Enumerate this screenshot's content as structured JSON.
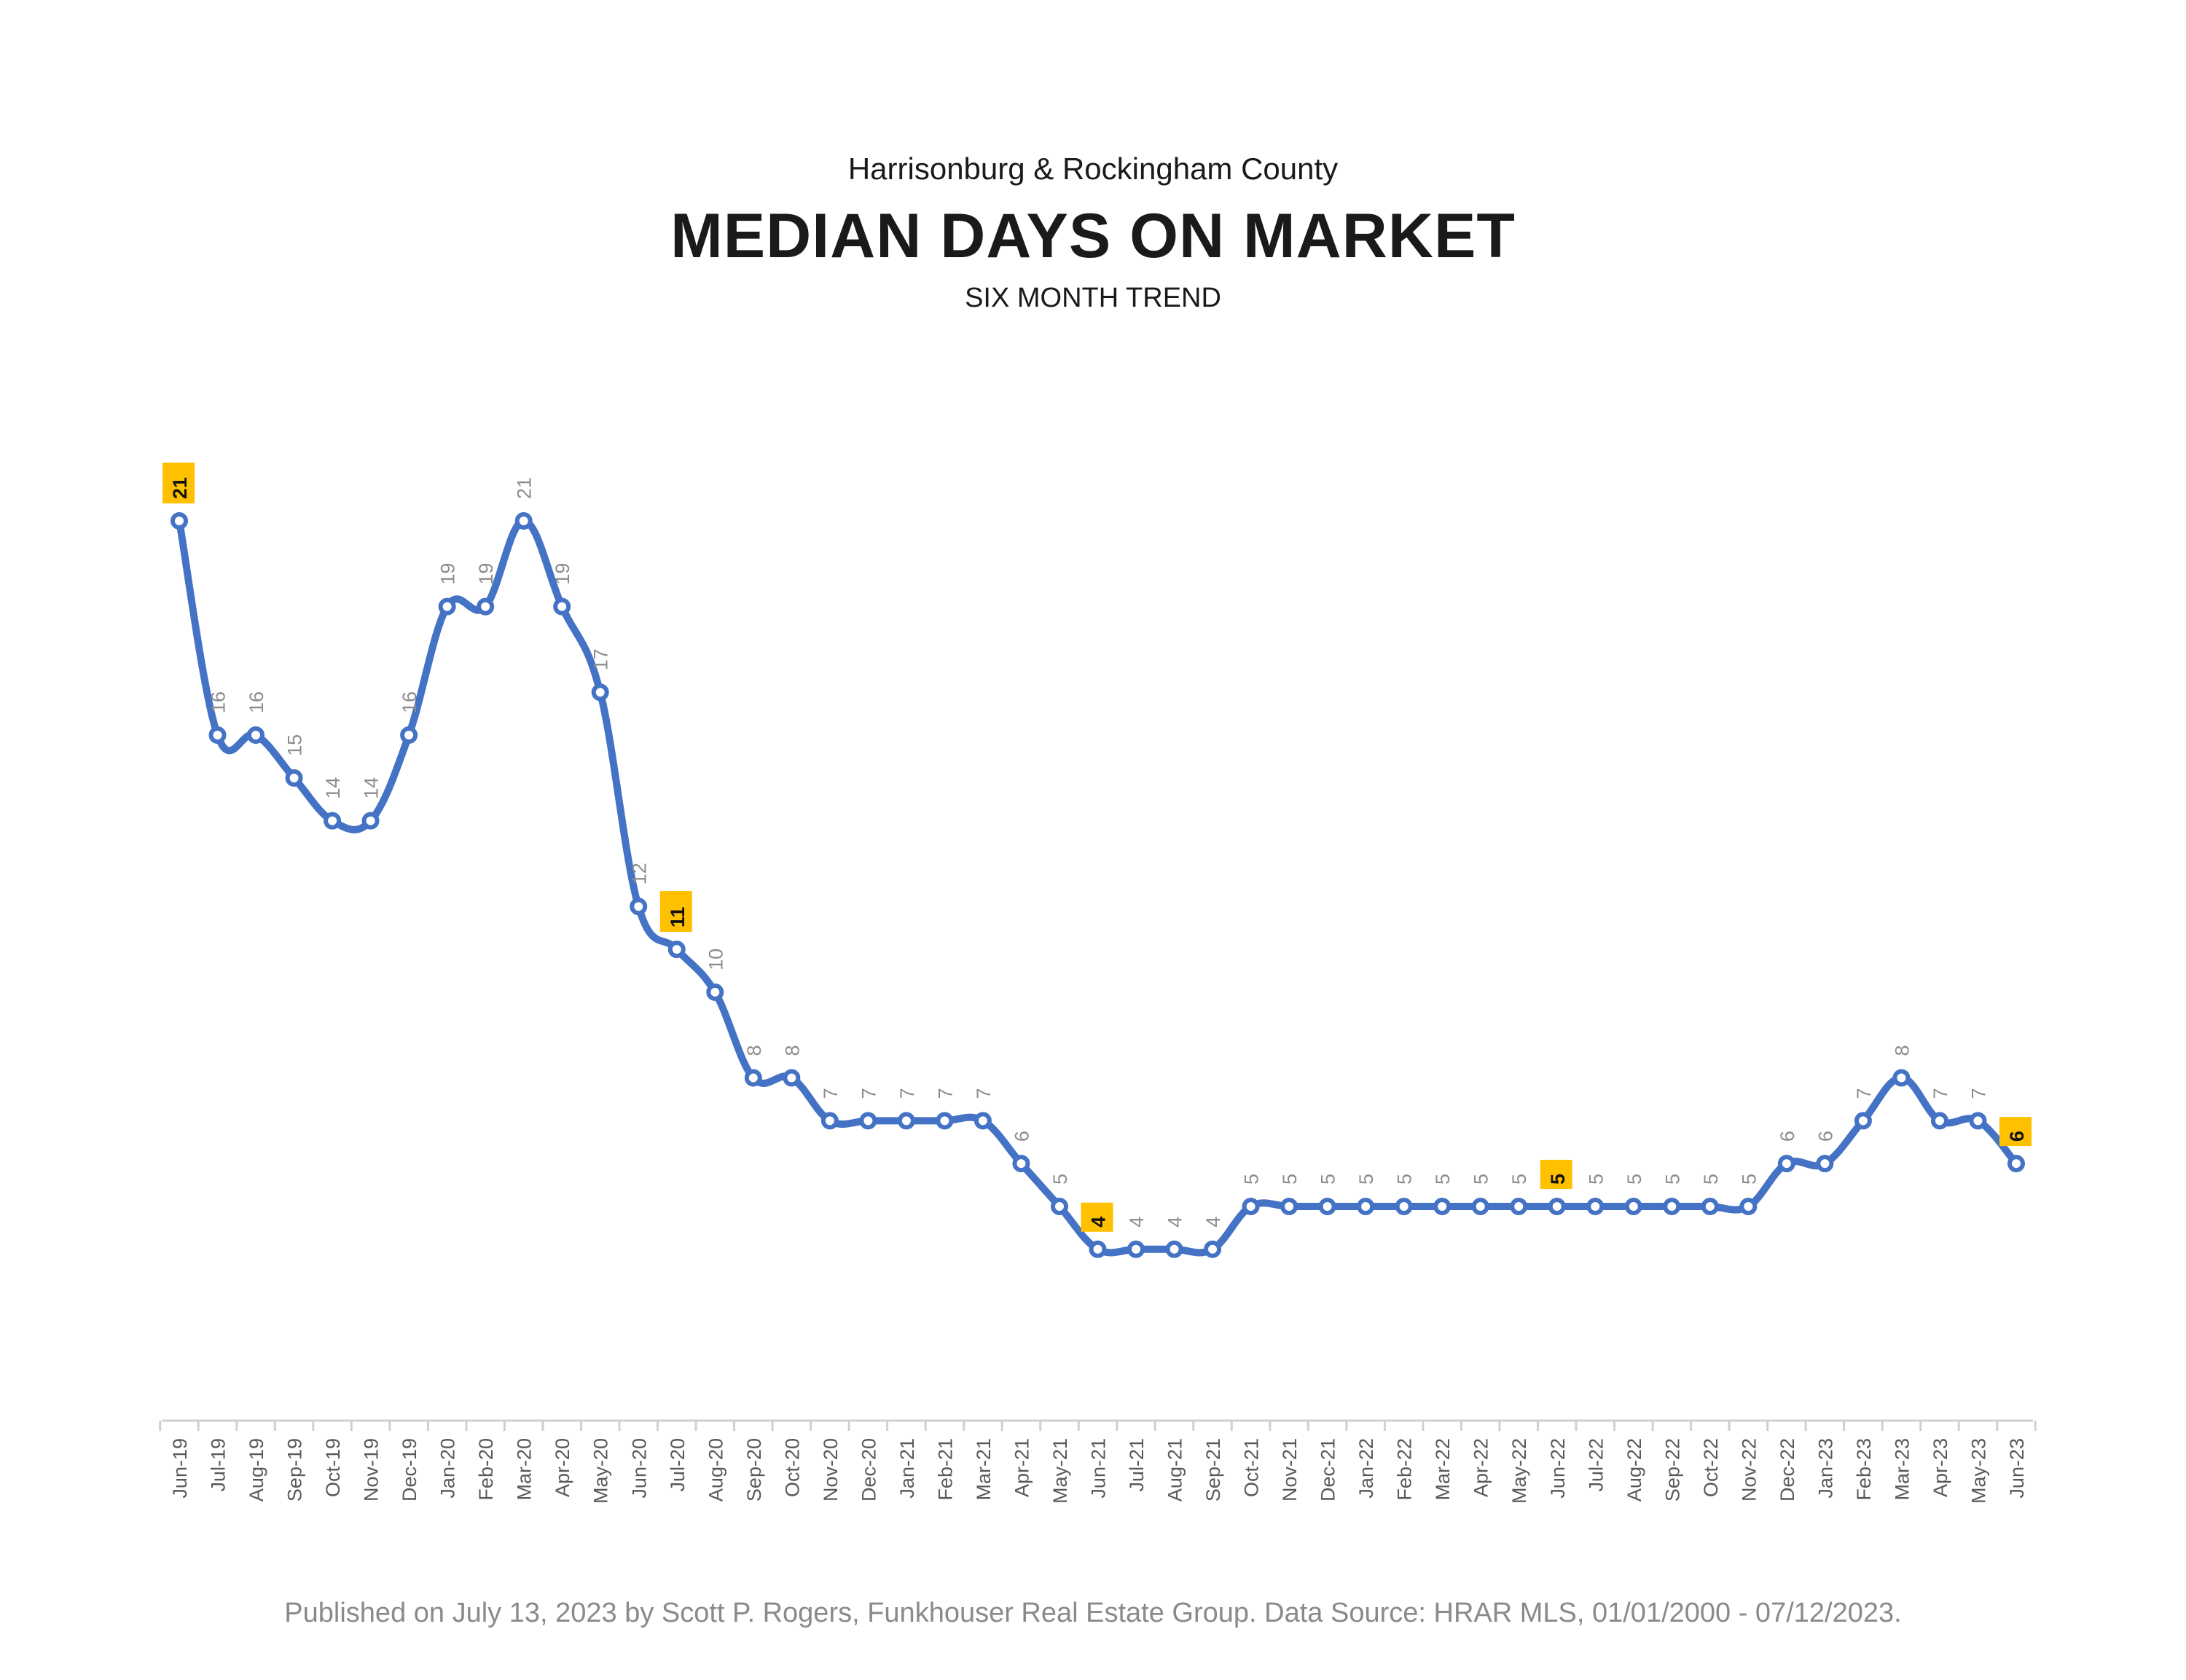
{
  "header": {
    "subtitle": "Harrisonburg & Rockingham County",
    "title": "MEDIAN DAYS ON MARKET",
    "caption": "SIX MONTH TREND"
  },
  "footer": {
    "text": "Published on July 13, 2023 by Scott P. Rogers, Funkhouser Real Estate Group. Data Source: HRAR MLS, 01/01/2000 - 07/12/2023."
  },
  "colors": {
    "line": "#4472C4",
    "highlight": "#FFC000",
    "label": "#8c8c8c",
    "axis": "#d0d0d0"
  },
  "chart_data": {
    "type": "line",
    "title": "MEDIAN DAYS ON MARKET",
    "subtitle": "SIX MONTH TREND",
    "xlabel": "",
    "ylabel": "",
    "ylim": [
      0,
      21
    ],
    "grid": false,
    "legend": "none",
    "categories": [
      "Jun-19",
      "Jul-19",
      "Aug-19",
      "Sep-19",
      "Oct-19",
      "Nov-19",
      "Dec-19",
      "Jan-20",
      "Feb-20",
      "Mar-20",
      "Apr-20",
      "May-20",
      "Jun-20",
      "Jul-20",
      "Aug-20",
      "Sep-20",
      "Oct-20",
      "Nov-20",
      "Dec-20",
      "Jan-21",
      "Feb-21",
      "Mar-21",
      "Apr-21",
      "May-21",
      "Jun-21",
      "Jul-21",
      "Aug-21",
      "Sep-21",
      "Oct-21",
      "Nov-21",
      "Dec-21",
      "Jan-22",
      "Feb-22",
      "Mar-22",
      "Apr-22",
      "May-22",
      "Jun-22",
      "Jul-22",
      "Aug-22",
      "Sep-22",
      "Oct-22",
      "Nov-22",
      "Dec-22",
      "Jan-23",
      "Feb-23",
      "Mar-23",
      "Apr-23",
      "May-23",
      "Jun-23"
    ],
    "series": [
      {
        "values": [
          21,
          16,
          16,
          15,
          14,
          14,
          16,
          19,
          19,
          21,
          19,
          17,
          12,
          11,
          10,
          8,
          8,
          7,
          7,
          7,
          7,
          7,
          6,
          5,
          4,
          4,
          4,
          4,
          5,
          5,
          5,
          5,
          5,
          5,
          5,
          5,
          5,
          5,
          5,
          5,
          5,
          5,
          6,
          6,
          7,
          8,
          7,
          7,
          6
        ],
        "highlighted": [
          "Jun-19",
          "Jul-20",
          "Jun-21",
          "Jun-22",
          "Jun-23"
        ]
      }
    ]
  }
}
